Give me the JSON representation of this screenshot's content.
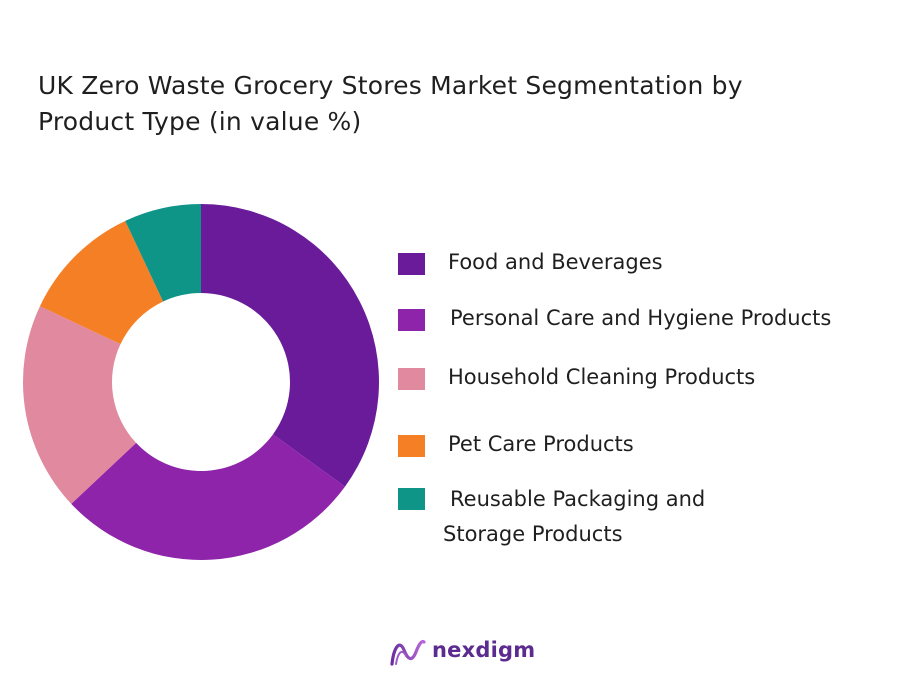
{
  "title_line1": "UK Zero Waste Grocery Stores Market Segmentation by",
  "title_line2": "Product Type  (in value %)",
  "chart_data": {
    "type": "pie",
    "donut": true,
    "title": "UK Zero Waste Grocery Stores Market Segmentation by Product Type  (in value %)",
    "categories": [
      "Food and Beverages",
      "Personal Care and Hygiene Products",
      "Household Cleaning Products",
      "Pet Care Products",
      "Reusable Packaging and Storage Products"
    ],
    "values": [
      35,
      28,
      19,
      11,
      7
    ],
    "colors": [
      "#6a1b9a",
      "#8e24aa",
      "#e0899f",
      "#f57f25",
      "#0f9488"
    ],
    "legend_position": "right"
  },
  "legend": [
    {
      "line1": "Food and Beverages",
      "line2": ""
    },
    {
      "line1": "Personal Care and Hygiene Products",
      "line2": ""
    },
    {
      "line1": "Household Cleaning Products",
      "line2": ""
    },
    {
      "line1": "Pet Care Products",
      "line2": ""
    },
    {
      "line1": "Reusable Packaging and",
      "line2": "Storage Products"
    }
  ],
  "logo": {
    "text": "nexdigm"
  }
}
